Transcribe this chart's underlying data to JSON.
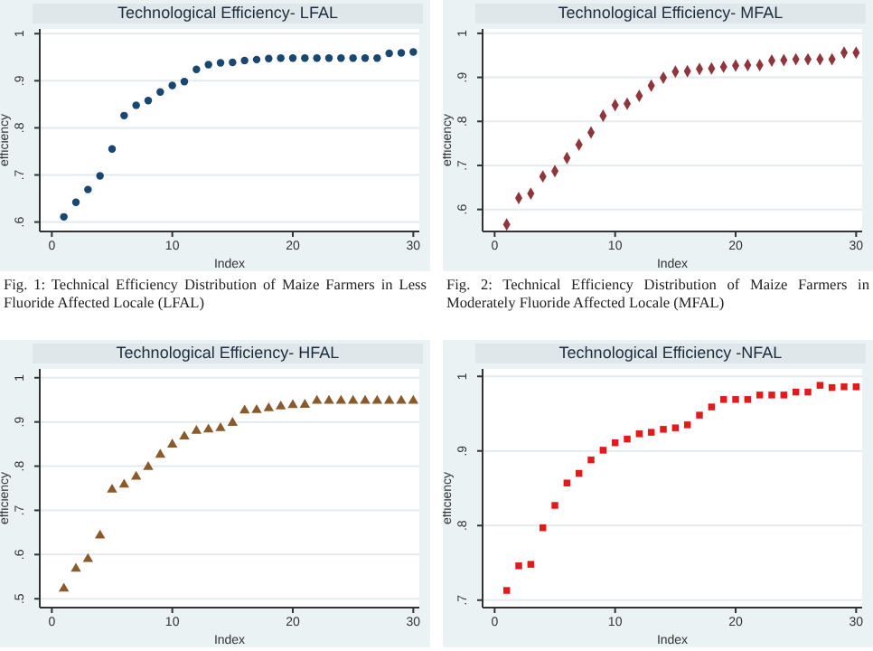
{
  "chart_data": [
    {
      "type": "scatter",
      "title": "Technological Efficiency- LFAL",
      "xlabel": "Index",
      "ylabel": "efficiency",
      "marker": "circle",
      "grid": "y",
      "xlim": [
        -1,
        30.5
      ],
      "xticks": [
        0,
        10,
        20,
        30
      ],
      "ylim": [
        0.58,
        1.01
      ],
      "yticks": [
        {
          "value": 0.6,
          "label": ".6"
        },
        {
          "value": 0.7,
          "label": ".7"
        },
        {
          "value": 0.8,
          "label": ".8"
        },
        {
          "value": 0.9,
          "label": ".9"
        },
        {
          "value": 1,
          "label": "1"
        }
      ],
      "x": [
        1,
        2,
        3,
        4,
        5,
        6,
        7,
        8,
        9,
        10,
        11,
        12,
        13,
        14,
        15,
        16,
        17,
        18,
        19,
        20,
        21,
        22,
        23,
        24,
        25,
        26,
        27,
        28,
        29,
        30
      ],
      "series": [
        {
          "color": "#1a476f",
          "values": [
            0.611,
            0.642,
            0.669,
            0.698,
            0.755,
            0.826,
            0.848,
            0.858,
            0.876,
            0.89,
            0.898,
            0.924,
            0.934,
            0.938,
            0.939,
            0.943,
            0.945,
            0.947,
            0.948,
            0.948,
            0.948,
            0.948,
            0.948,
            0.948,
            0.948,
            0.948,
            0.948,
            0.958,
            0.959,
            0.961
          ]
        }
      ],
      "annotations": [
        "Fig. 1: Technical Efficiency Distribution of Maize Farmers in Less Fluoride Affected Locale (LFAL)"
      ]
    },
    {
      "type": "scatter",
      "title": "Technological Efficiency- MFAL",
      "xlabel": "Index",
      "ylabel": "efficiency",
      "marker": "diamond",
      "grid": "y",
      "xlim": [
        -1,
        30.5
      ],
      "xticks": [
        0,
        10,
        20,
        30
      ],
      "ylim": [
        0.55,
        1.01
      ],
      "yticks": [
        {
          "value": 0.6,
          "label": ".6"
        },
        {
          "value": 0.7,
          "label": ".7"
        },
        {
          "value": 0.8,
          "label": ".8"
        },
        {
          "value": 0.9,
          "label": ".9"
        },
        {
          "value": 1,
          "label": "1"
        }
      ],
      "x": [
        1,
        2,
        3,
        4,
        5,
        6,
        7,
        8,
        9,
        10,
        11,
        12,
        13,
        14,
        15,
        16,
        17,
        18,
        19,
        20,
        21,
        22,
        23,
        24,
        25,
        26,
        27,
        28,
        29,
        30
      ],
      "series": [
        {
          "color": "#90353b",
          "values": [
            0.566,
            0.626,
            0.636,
            0.675,
            0.687,
            0.717,
            0.747,
            0.775,
            0.813,
            0.837,
            0.84,
            0.858,
            0.881,
            0.899,
            0.913,
            0.914,
            0.919,
            0.92,
            0.924,
            0.927,
            0.928,
            0.928,
            0.938,
            0.939,
            0.941,
            0.941,
            0.941,
            0.941,
            0.956,
            0.956
          ]
        }
      ],
      "annotations": [
        "Fig. 2: Technical Efficiency Distribution of Maize Farmers in Moderately Fluoride Affected Locale (MFAL)"
      ]
    },
    {
      "type": "scatter",
      "title": "Technological Efficiency- HFAL",
      "xlabel": "Index",
      "ylabel": "efficiency",
      "marker": "triangle",
      "grid": "y",
      "xlim": [
        -1,
        30.5
      ],
      "xticks": [
        0,
        10,
        20,
        30
      ],
      "ylim": [
        0.48,
        1.02
      ],
      "yticks": [
        {
          "value": 0.5,
          "label": ".5"
        },
        {
          "value": 0.6,
          "label": ".6"
        },
        {
          "value": 0.7,
          "label": ".7"
        },
        {
          "value": 0.8,
          "label": ".8"
        },
        {
          "value": 0.9,
          "label": ".9"
        },
        {
          "value": 1,
          "label": "1"
        }
      ],
      "x": [
        1,
        2,
        3,
        4,
        5,
        6,
        7,
        8,
        9,
        10,
        11,
        12,
        13,
        14,
        15,
        16,
        17,
        18,
        19,
        20,
        21,
        22,
        23,
        24,
        25,
        26,
        27,
        28,
        29,
        30
      ],
      "series": [
        {
          "color": "#8a5a2b",
          "values": [
            0.523,
            0.568,
            0.59,
            0.643,
            0.747,
            0.758,
            0.776,
            0.798,
            0.826,
            0.849,
            0.867,
            0.88,
            0.883,
            0.886,
            0.898,
            0.926,
            0.927,
            0.931,
            0.935,
            0.938,
            0.939,
            0.948,
            0.948,
            0.948,
            0.948,
            0.948,
            0.948,
            0.948,
            0.948,
            0.948
          ]
        }
      ]
    },
    {
      "type": "scatter",
      "title": "Technological Efficiency -NFAL",
      "xlabel": "Index",
      "ylabel": "efficiency",
      "marker": "square",
      "grid": "y",
      "xlim": [
        -1,
        30.5
      ],
      "xticks": [
        0,
        10,
        20,
        30
      ],
      "ylim": [
        0.69,
        1.01
      ],
      "yticks": [
        {
          "value": 0.7,
          "label": ".7"
        },
        {
          "value": 0.8,
          "label": ".8"
        },
        {
          "value": 0.9,
          "label": ".9"
        },
        {
          "value": 1,
          "label": "1"
        }
      ],
      "x": [
        1,
        2,
        3,
        4,
        5,
        6,
        7,
        8,
        9,
        10,
        11,
        12,
        13,
        14,
        15,
        16,
        17,
        18,
        19,
        20,
        21,
        22,
        23,
        24,
        25,
        26,
        27,
        28,
        29,
        30
      ],
      "series": [
        {
          "color": "#e31a1c",
          "values": [
            0.713,
            0.746,
            0.748,
            0.797,
            0.827,
            0.857,
            0.87,
            0.888,
            0.901,
            0.911,
            0.916,
            0.923,
            0.925,
            0.929,
            0.931,
            0.935,
            0.948,
            0.959,
            0.969,
            0.969,
            0.969,
            0.975,
            0.975,
            0.975,
            0.979,
            0.979,
            0.988,
            0.985,
            0.986,
            0.986
          ]
        }
      ]
    }
  ]
}
